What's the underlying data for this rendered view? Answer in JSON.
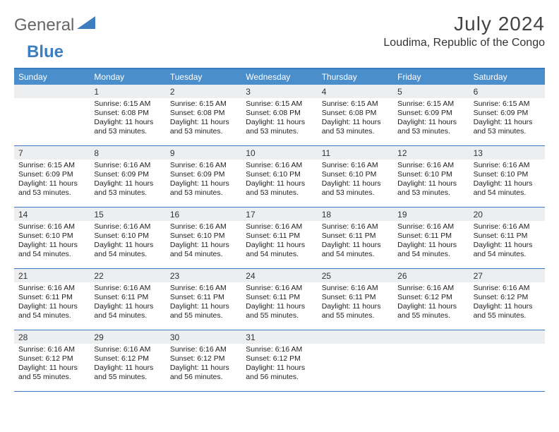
{
  "logo": {
    "general": "General",
    "blue": "Blue"
  },
  "title": "July 2024",
  "location": "Loudima, Republic of the Congo",
  "colors": {
    "header_bg": "#4a8ecb",
    "header_text": "#ffffff",
    "border": "#3b7abf",
    "daynum_bg": "#eceef0",
    "body_text": "#222222",
    "logo_blue": "#3c7ebf",
    "logo_gray": "#666666",
    "page_bg": "#ffffff"
  },
  "weekdays": [
    "Sunday",
    "Monday",
    "Tuesday",
    "Wednesday",
    "Thursday",
    "Friday",
    "Saturday"
  ],
  "weeks": [
    [
      {
        "n": "",
        "sr": "",
        "ss": "",
        "dl1": "",
        "dl2": ""
      },
      {
        "n": "1",
        "sr": "Sunrise: 6:15 AM",
        "ss": "Sunset: 6:08 PM",
        "dl1": "Daylight: 11 hours",
        "dl2": "and 53 minutes."
      },
      {
        "n": "2",
        "sr": "Sunrise: 6:15 AM",
        "ss": "Sunset: 6:08 PM",
        "dl1": "Daylight: 11 hours",
        "dl2": "and 53 minutes."
      },
      {
        "n": "3",
        "sr": "Sunrise: 6:15 AM",
        "ss": "Sunset: 6:08 PM",
        "dl1": "Daylight: 11 hours",
        "dl2": "and 53 minutes."
      },
      {
        "n": "4",
        "sr": "Sunrise: 6:15 AM",
        "ss": "Sunset: 6:08 PM",
        "dl1": "Daylight: 11 hours",
        "dl2": "and 53 minutes."
      },
      {
        "n": "5",
        "sr": "Sunrise: 6:15 AM",
        "ss": "Sunset: 6:09 PM",
        "dl1": "Daylight: 11 hours",
        "dl2": "and 53 minutes."
      },
      {
        "n": "6",
        "sr": "Sunrise: 6:15 AM",
        "ss": "Sunset: 6:09 PM",
        "dl1": "Daylight: 11 hours",
        "dl2": "and 53 minutes."
      }
    ],
    [
      {
        "n": "7",
        "sr": "Sunrise: 6:15 AM",
        "ss": "Sunset: 6:09 PM",
        "dl1": "Daylight: 11 hours",
        "dl2": "and 53 minutes."
      },
      {
        "n": "8",
        "sr": "Sunrise: 6:16 AM",
        "ss": "Sunset: 6:09 PM",
        "dl1": "Daylight: 11 hours",
        "dl2": "and 53 minutes."
      },
      {
        "n": "9",
        "sr": "Sunrise: 6:16 AM",
        "ss": "Sunset: 6:09 PM",
        "dl1": "Daylight: 11 hours",
        "dl2": "and 53 minutes."
      },
      {
        "n": "10",
        "sr": "Sunrise: 6:16 AM",
        "ss": "Sunset: 6:10 PM",
        "dl1": "Daylight: 11 hours",
        "dl2": "and 53 minutes."
      },
      {
        "n": "11",
        "sr": "Sunrise: 6:16 AM",
        "ss": "Sunset: 6:10 PM",
        "dl1": "Daylight: 11 hours",
        "dl2": "and 53 minutes."
      },
      {
        "n": "12",
        "sr": "Sunrise: 6:16 AM",
        "ss": "Sunset: 6:10 PM",
        "dl1": "Daylight: 11 hours",
        "dl2": "and 53 minutes."
      },
      {
        "n": "13",
        "sr": "Sunrise: 6:16 AM",
        "ss": "Sunset: 6:10 PM",
        "dl1": "Daylight: 11 hours",
        "dl2": "and 54 minutes."
      }
    ],
    [
      {
        "n": "14",
        "sr": "Sunrise: 6:16 AM",
        "ss": "Sunset: 6:10 PM",
        "dl1": "Daylight: 11 hours",
        "dl2": "and 54 minutes."
      },
      {
        "n": "15",
        "sr": "Sunrise: 6:16 AM",
        "ss": "Sunset: 6:10 PM",
        "dl1": "Daylight: 11 hours",
        "dl2": "and 54 minutes."
      },
      {
        "n": "16",
        "sr": "Sunrise: 6:16 AM",
        "ss": "Sunset: 6:10 PM",
        "dl1": "Daylight: 11 hours",
        "dl2": "and 54 minutes."
      },
      {
        "n": "17",
        "sr": "Sunrise: 6:16 AM",
        "ss": "Sunset: 6:11 PM",
        "dl1": "Daylight: 11 hours",
        "dl2": "and 54 minutes."
      },
      {
        "n": "18",
        "sr": "Sunrise: 6:16 AM",
        "ss": "Sunset: 6:11 PM",
        "dl1": "Daylight: 11 hours",
        "dl2": "and 54 minutes."
      },
      {
        "n": "19",
        "sr": "Sunrise: 6:16 AM",
        "ss": "Sunset: 6:11 PM",
        "dl1": "Daylight: 11 hours",
        "dl2": "and 54 minutes."
      },
      {
        "n": "20",
        "sr": "Sunrise: 6:16 AM",
        "ss": "Sunset: 6:11 PM",
        "dl1": "Daylight: 11 hours",
        "dl2": "and 54 minutes."
      }
    ],
    [
      {
        "n": "21",
        "sr": "Sunrise: 6:16 AM",
        "ss": "Sunset: 6:11 PM",
        "dl1": "Daylight: 11 hours",
        "dl2": "and 54 minutes."
      },
      {
        "n": "22",
        "sr": "Sunrise: 6:16 AM",
        "ss": "Sunset: 6:11 PM",
        "dl1": "Daylight: 11 hours",
        "dl2": "and 54 minutes."
      },
      {
        "n": "23",
        "sr": "Sunrise: 6:16 AM",
        "ss": "Sunset: 6:11 PM",
        "dl1": "Daylight: 11 hours",
        "dl2": "and 55 minutes."
      },
      {
        "n": "24",
        "sr": "Sunrise: 6:16 AM",
        "ss": "Sunset: 6:11 PM",
        "dl1": "Daylight: 11 hours",
        "dl2": "and 55 minutes."
      },
      {
        "n": "25",
        "sr": "Sunrise: 6:16 AM",
        "ss": "Sunset: 6:11 PM",
        "dl1": "Daylight: 11 hours",
        "dl2": "and 55 minutes."
      },
      {
        "n": "26",
        "sr": "Sunrise: 6:16 AM",
        "ss": "Sunset: 6:12 PM",
        "dl1": "Daylight: 11 hours",
        "dl2": "and 55 minutes."
      },
      {
        "n": "27",
        "sr": "Sunrise: 6:16 AM",
        "ss": "Sunset: 6:12 PM",
        "dl1": "Daylight: 11 hours",
        "dl2": "and 55 minutes."
      }
    ],
    [
      {
        "n": "28",
        "sr": "Sunrise: 6:16 AM",
        "ss": "Sunset: 6:12 PM",
        "dl1": "Daylight: 11 hours",
        "dl2": "and 55 minutes."
      },
      {
        "n": "29",
        "sr": "Sunrise: 6:16 AM",
        "ss": "Sunset: 6:12 PM",
        "dl1": "Daylight: 11 hours",
        "dl2": "and 55 minutes."
      },
      {
        "n": "30",
        "sr": "Sunrise: 6:16 AM",
        "ss": "Sunset: 6:12 PM",
        "dl1": "Daylight: 11 hours",
        "dl2": "and 56 minutes."
      },
      {
        "n": "31",
        "sr": "Sunrise: 6:16 AM",
        "ss": "Sunset: 6:12 PM",
        "dl1": "Daylight: 11 hours",
        "dl2": "and 56 minutes."
      },
      {
        "n": "",
        "sr": "",
        "ss": "",
        "dl1": "",
        "dl2": ""
      },
      {
        "n": "",
        "sr": "",
        "ss": "",
        "dl1": "",
        "dl2": ""
      },
      {
        "n": "",
        "sr": "",
        "ss": "",
        "dl1": "",
        "dl2": ""
      }
    ]
  ]
}
